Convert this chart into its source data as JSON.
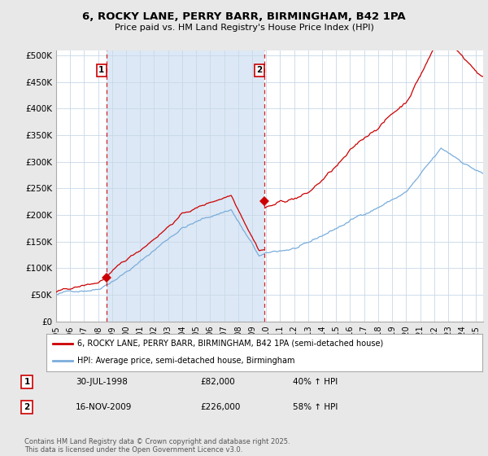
{
  "title_line1": "6, ROCKY LANE, PERRY BARR, BIRMINGHAM, B42 1PA",
  "title_line2": "Price paid vs. HM Land Registry's House Price Index (HPI)",
  "background_color": "#e8e8e8",
  "plot_bg_color": "#ffffff",
  "shaded_bg_color": "#dce8f5",
  "red_color": "#cc0000",
  "blue_color": "#7aaddb",
  "annotation1_date": "30-JUL-1998",
  "annotation1_price": 82000,
  "annotation1_hpi": "40% ↑ HPI",
  "annotation2_date": "16-NOV-2009",
  "annotation2_price": 226000,
  "annotation2_hpi": "58% ↑ HPI",
  "legend_label1": "6, ROCKY LANE, PERRY BARR, BIRMINGHAM, B42 1PA (semi-detached house)",
  "legend_label2": "HPI: Average price, semi-detached house, Birmingham",
  "footer": "Contains HM Land Registry data © Crown copyright and database right 2025.\nThis data is licensed under the Open Government Licence v3.0.",
  "yticks": [
    0,
    50000,
    100000,
    150000,
    200000,
    250000,
    300000,
    350000,
    400000,
    450000,
    500000
  ],
  "ylim": [
    0,
    510000
  ],
  "xlim_start": 1995.0,
  "xlim_end": 2025.5,
  "vline1_x": 1998.58,
  "vline2_x": 2009.88,
  "marker1_x": 1998.58,
  "marker1_y": 82000,
  "marker2_x": 2009.88,
  "marker2_y": 226000
}
